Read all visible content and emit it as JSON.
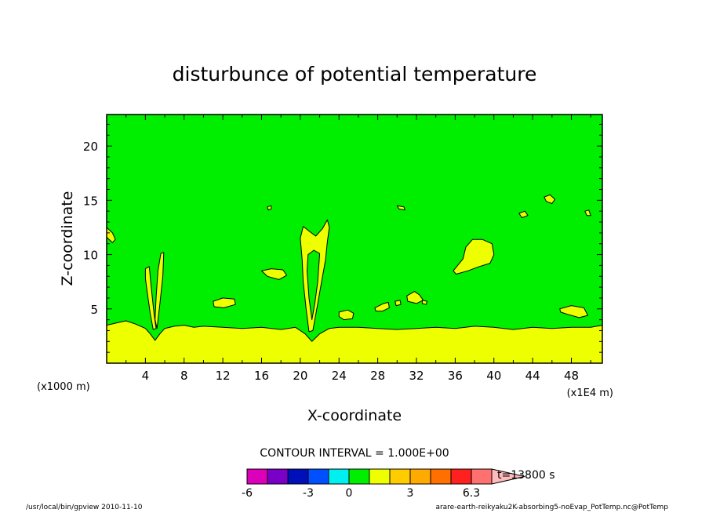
{
  "chart_data": {
    "type": "heatmap",
    "title": "disturbunce of potential temperature",
    "xlabel": "X-coordinate",
    "ylabel": "Z-coordinate",
    "x_units": "(x1000 m)",
    "x_scale_note": "(x1E4 m)",
    "xlim": [
      0,
      51.2
    ],
    "ylim": [
      0,
      22.9
    ],
    "x_ticks": [
      4,
      8,
      12,
      16,
      20,
      24,
      28,
      32,
      36,
      40,
      44,
      48
    ],
    "y_ticks": [
      5,
      10,
      15,
      20
    ],
    "contour_interval": "CONTOUR INTERVAL = 1.000E+00",
    "time_label": "t=13800 s",
    "colorbar": {
      "colors": [
        "#dd00bb",
        "#7a00c8",
        "#0010b8",
        "#0050ff",
        "#00f0f0",
        "#00ee00",
        "#eeff00",
        "#ffcc00",
        "#ffaa00",
        "#ff7000",
        "#ff2020",
        "#ff7070",
        "#ffbbbb"
      ],
      "tick_labels": [
        "-6",
        "-3",
        "0",
        "3",
        "6.3"
      ]
    },
    "background_color": "#00ee00",
    "positive_color": "#eeff00",
    "regions": [
      {
        "name": "boundary-layer",
        "points": [
          [
            0,
            0
          ],
          [
            0,
            3.5
          ],
          [
            1,
            3.7
          ],
          [
            2,
            3.9
          ],
          [
            3,
            3.6
          ],
          [
            4,
            3.2
          ],
          [
            4.5,
            2.7
          ],
          [
            5,
            2.1
          ],
          [
            5.5,
            2.7
          ],
          [
            6,
            3.2
          ],
          [
            7,
            3.4
          ],
          [
            8,
            3.5
          ],
          [
            9,
            3.3
          ],
          [
            10,
            3.4
          ],
          [
            12,
            3.3
          ],
          [
            14,
            3.2
          ],
          [
            16,
            3.3
          ],
          [
            18,
            3.1
          ],
          [
            19.5,
            3.3
          ],
          [
            20.5,
            2.7
          ],
          [
            21.2,
            2.0
          ],
          [
            22,
            2.7
          ],
          [
            23,
            3.2
          ],
          [
            24,
            3.3
          ],
          [
            26,
            3.3
          ],
          [
            28,
            3.2
          ],
          [
            30,
            3.1
          ],
          [
            32,
            3.2
          ],
          [
            34,
            3.3
          ],
          [
            36,
            3.2
          ],
          [
            38,
            3.4
          ],
          [
            40,
            3.3
          ],
          [
            42,
            3.1
          ],
          [
            44,
            3.3
          ],
          [
            46,
            3.2
          ],
          [
            48,
            3.3
          ],
          [
            50,
            3.3
          ],
          [
            51.2,
            3.5
          ],
          [
            51.2,
            0
          ]
        ]
      },
      {
        "name": "plume-left-a",
        "points": [
          [
            4.0,
            8.7
          ],
          [
            4.4,
            8.9
          ],
          [
            4.6,
            7.0
          ],
          [
            4.9,
            4.5
          ],
          [
            5.1,
            3.2
          ],
          [
            4.8,
            3.1
          ],
          [
            4.5,
            4.6
          ],
          [
            4.2,
            6.5
          ],
          [
            4.0,
            7.8
          ]
        ]
      },
      {
        "name": "plume-left-b",
        "points": [
          [
            5.2,
            3.2
          ],
          [
            5.5,
            5.5
          ],
          [
            5.8,
            8.0
          ],
          [
            5.9,
            10.2
          ],
          [
            5.6,
            10.1
          ],
          [
            5.3,
            8.5
          ],
          [
            5.1,
            6.0
          ],
          [
            5.0,
            4.0
          ]
        ]
      },
      {
        "name": "plume-center",
        "points": [
          [
            20.9,
            2.9
          ],
          [
            20.6,
            5.0
          ],
          [
            20.3,
            7.5
          ],
          [
            20.2,
            9.5
          ],
          [
            20.0,
            11.5
          ],
          [
            20.3,
            12.6
          ],
          [
            21.0,
            12.1
          ],
          [
            21.6,
            11.7
          ],
          [
            22.3,
            12.4
          ],
          [
            22.8,
            13.2
          ],
          [
            23.0,
            12.5
          ],
          [
            22.8,
            11.2
          ],
          [
            22.6,
            9.5
          ],
          [
            22.1,
            7.0
          ],
          [
            21.7,
            5.0
          ],
          [
            21.3,
            3.0
          ]
        ]
      },
      {
        "name": "plume-center-hole",
        "points": [
          [
            21.2,
            4.0
          ],
          [
            20.9,
            6.0
          ],
          [
            20.7,
            8.5
          ],
          [
            20.8,
            10.0
          ],
          [
            21.4,
            10.4
          ],
          [
            22.0,
            10.1
          ],
          [
            21.8,
            7.5
          ],
          [
            21.5,
            5.5
          ]
        ]
      },
      {
        "name": "patch-1",
        "points": [
          [
            0,
            12.5
          ],
          [
            0.6,
            12.0
          ],
          [
            0.9,
            11.4
          ],
          [
            0.6,
            11.1
          ],
          [
            0,
            11.6
          ]
        ]
      },
      {
        "name": "patch-2",
        "points": [
          [
            16.6,
            14.4
          ],
          [
            17.0,
            14.5
          ],
          [
            17.0,
            14.2
          ],
          [
            16.7,
            14.1
          ]
        ]
      },
      {
        "name": "patch-3",
        "points": [
          [
            16.0,
            8.5
          ],
          [
            17.0,
            8.7
          ],
          [
            18.2,
            8.6
          ],
          [
            18.6,
            8.1
          ],
          [
            17.8,
            7.7
          ],
          [
            16.6,
            8.0
          ]
        ]
      },
      {
        "name": "patch-4",
        "points": [
          [
            11.0,
            5.7
          ],
          [
            12.0,
            6.0
          ],
          [
            13.2,
            5.9
          ],
          [
            13.3,
            5.4
          ],
          [
            12.1,
            5.1
          ],
          [
            11.1,
            5.2
          ]
        ]
      },
      {
        "name": "patch-5",
        "points": [
          [
            24.0,
            4.7
          ],
          [
            24.9,
            4.9
          ],
          [
            25.5,
            4.6
          ],
          [
            25.4,
            4.1
          ],
          [
            24.5,
            4.0
          ],
          [
            24.0,
            4.3
          ]
        ]
      },
      {
        "name": "patch-6",
        "points": [
          [
            27.7,
            5.1
          ],
          [
            28.6,
            5.5
          ],
          [
            29.1,
            5.6
          ],
          [
            29.2,
            5.1
          ],
          [
            28.5,
            4.8
          ],
          [
            27.8,
            4.8
          ]
        ]
      },
      {
        "name": "patch-7",
        "points": [
          [
            29.8,
            5.7
          ],
          [
            30.3,
            5.8
          ],
          [
            30.4,
            5.4
          ],
          [
            29.9,
            5.3
          ]
        ]
      },
      {
        "name": "patch-8",
        "points": [
          [
            31.0,
            6.2
          ],
          [
            31.8,
            6.6
          ],
          [
            32.3,
            6.3
          ],
          [
            32.7,
            5.8
          ],
          [
            32.0,
            5.5
          ],
          [
            31.1,
            5.7
          ]
        ]
      },
      {
        "name": "patch-9",
        "points": [
          [
            32.6,
            5.8
          ],
          [
            33.1,
            5.7
          ],
          [
            33.0,
            5.4
          ],
          [
            32.6,
            5.5
          ]
        ]
      },
      {
        "name": "patch-10",
        "points": [
          [
            30.0,
            14.5
          ],
          [
            30.7,
            14.4
          ],
          [
            30.8,
            14.1
          ],
          [
            30.2,
            14.2
          ]
        ]
      },
      {
        "name": "patch-11",
        "points": [
          [
            35.8,
            8.5
          ],
          [
            36.8,
            9.6
          ],
          [
            37.1,
            10.7
          ],
          [
            37.8,
            11.4
          ],
          [
            38.8,
            11.4
          ],
          [
            39.8,
            11.0
          ],
          [
            40.0,
            10.0
          ],
          [
            39.6,
            9.2
          ],
          [
            38.5,
            8.9
          ],
          [
            37.3,
            8.5
          ],
          [
            36.1,
            8.2
          ]
        ]
      },
      {
        "name": "patch-12",
        "points": [
          [
            42.6,
            13.8
          ],
          [
            43.2,
            14.0
          ],
          [
            43.5,
            13.6
          ],
          [
            42.9,
            13.4
          ]
        ]
      },
      {
        "name": "patch-13",
        "points": [
          [
            45.2,
            15.3
          ],
          [
            45.8,
            15.5
          ],
          [
            46.3,
            15.1
          ],
          [
            46.0,
            14.7
          ],
          [
            45.4,
            14.9
          ]
        ]
      },
      {
        "name": "patch-14",
        "points": [
          [
            49.4,
            14.0
          ],
          [
            49.8,
            14.1
          ],
          [
            50.0,
            13.6
          ],
          [
            49.6,
            13.6
          ]
        ]
      },
      {
        "name": "patch-15",
        "points": [
          [
            46.8,
            5.0
          ],
          [
            48.0,
            5.3
          ],
          [
            49.3,
            5.1
          ],
          [
            49.7,
            4.4
          ],
          [
            48.8,
            4.2
          ],
          [
            47.6,
            4.5
          ],
          [
            46.9,
            4.7
          ]
        ]
      }
    ]
  },
  "footer": {
    "left": "/usr/local/bin/gpview  2010-11-10",
    "right": "arare-earth-reikyaku2K-absorbing5-noEvap_PotTemp.nc@PotTemp"
  }
}
